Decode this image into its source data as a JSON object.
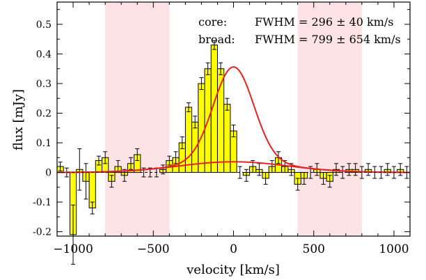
{
  "chart_data": {
    "type": "bar",
    "xlabel": "velocity [km/s]",
    "ylabel": "flux [mJy]",
    "xlim": [
      -1100,
      1100
    ],
    "ylim": [
      -0.215,
      0.575
    ],
    "x_ticks": [
      -1000,
      -500,
      0,
      500,
      1000
    ],
    "x_tick_labels": [
      "−1000",
      "−500",
      "0",
      "500",
      "1000"
    ],
    "y_ticks": [
      -0.2,
      -0.1,
      0,
      0.1,
      0.2,
      0.3,
      0.4,
      0.5
    ],
    "y_tick_labels": [
      "-0.2",
      "-0.1",
      "0",
      "0.1",
      "0.2",
      "0.3",
      "0.4",
      "0.5"
    ],
    "bin_width": 40,
    "bins": {
      "x": [
        -1080,
        -1040,
        -1000,
        -960,
        -920,
        -880,
        -840,
        -800,
        -760,
        -720,
        -680,
        -640,
        -600,
        -560,
        -520,
        -480,
        -440,
        -400,
        -360,
        -320,
        -280,
        -240,
        -200,
        -160,
        -120,
        -80,
        -40,
        0,
        40,
        80,
        120,
        160,
        200,
        240,
        280,
        320,
        360,
        400,
        440,
        480,
        520,
        560,
        600,
        640,
        680,
        720,
        760,
        800,
        840,
        880,
        920,
        960,
        1000,
        1040,
        1080
      ],
      "flux": [
        0.02,
        0.0,
        -0.21,
        0.01,
        -0.03,
        -0.12,
        0.04,
        0.05,
        -0.03,
        0.02,
        -0.01,
        0.03,
        0.06,
        0.0,
        0.0,
        0.0,
        0.01,
        0.04,
        0.05,
        0.1,
        0.22,
        0.17,
        0.3,
        0.35,
        0.43,
        0.35,
        0.23,
        0.14,
        0.0,
        -0.01,
        0.02,
        0.01,
        -0.02,
        0.02,
        0.05,
        0.02,
        0.01,
        -0.04,
        -0.02,
        0.0,
        0.01,
        -0.02,
        -0.03,
        0.01,
        0.0,
        0.01,
        0.01,
        0.0,
        0.01,
        0.0,
        0.0,
        0.01,
        0.0,
        0.01,
        0.0
      ],
      "error": [
        0.015,
        0.015,
        0.1,
        0.07,
        0.06,
        0.02,
        0.015,
        0.02,
        0.02,
        0.02,
        0.02,
        0.02,
        0.02,
        0.015,
        0.015,
        0.015,
        0.015,
        0.015,
        0.02,
        0.02,
        0.015,
        0.02,
        0.02,
        0.02,
        0.015,
        0.02,
        0.02,
        0.02,
        0.02,
        0.02,
        0.02,
        0.02,
        0.02,
        0.02,
        0.02,
        0.02,
        0.02,
        0.02,
        0.02,
        0.02,
        0.02,
        0.02,
        0.02,
        0.02,
        0.02,
        0.02,
        0.02,
        0.02,
        0.02,
        0.02,
        0.02,
        0.02,
        0.02,
        0.02,
        0.02
      ]
    },
    "fits": [
      {
        "component": "core",
        "amplitude": 0.32,
        "center": 0,
        "fwhm": 296
      },
      {
        "component": "broad",
        "amplitude": 0.036,
        "center": 0,
        "fwhm": 799
      }
    ],
    "shaded_regions": [
      [
        -800,
        -400
      ],
      [
        400,
        800
      ]
    ],
    "zero_line": 0,
    "annotations": [
      {
        "label": "core:",
        "value": "FWHM = 296 ± 40 km/s"
      },
      {
        "label": "broad:",
        "value": "FWHM = 799 ± 654 km/s"
      }
    ],
    "colors": {
      "bar_fill": "#ffff00",
      "bar_edge": "#000000",
      "fit_line": "#e8201f",
      "shade": "#fde2e6"
    }
  }
}
